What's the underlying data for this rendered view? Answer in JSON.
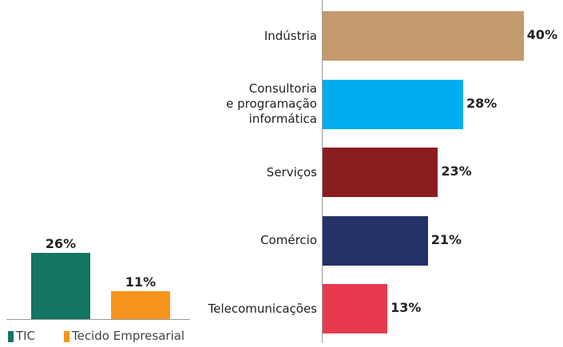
{
  "chart_data": [
    {
      "type": "bar",
      "categories": [
        "TIC",
        "Tecido Empresarial"
      ],
      "values": [
        26,
        11
      ],
      "value_labels": [
        "26%",
        "11%"
      ],
      "colors": [
        "#137562",
        "#f7941d"
      ],
      "ylim": [
        0,
        30
      ],
      "legend": "bottom"
    },
    {
      "type": "barh",
      "categories": [
        "Indústria",
        "Consultoria\ne programação\ninformática",
        "Serviços",
        "Comércio",
        "Telecomunicações"
      ],
      "values": [
        40,
        28,
        23,
        21,
        13
      ],
      "value_labels": [
        "40%",
        "28%",
        "23%",
        "21%",
        "13%"
      ],
      "colors": [
        "#c49a6c",
        "#00aeef",
        "#8b1c20",
        "#233268",
        "#e83a4f"
      ],
      "xlim": [
        0,
        50
      ]
    }
  ]
}
